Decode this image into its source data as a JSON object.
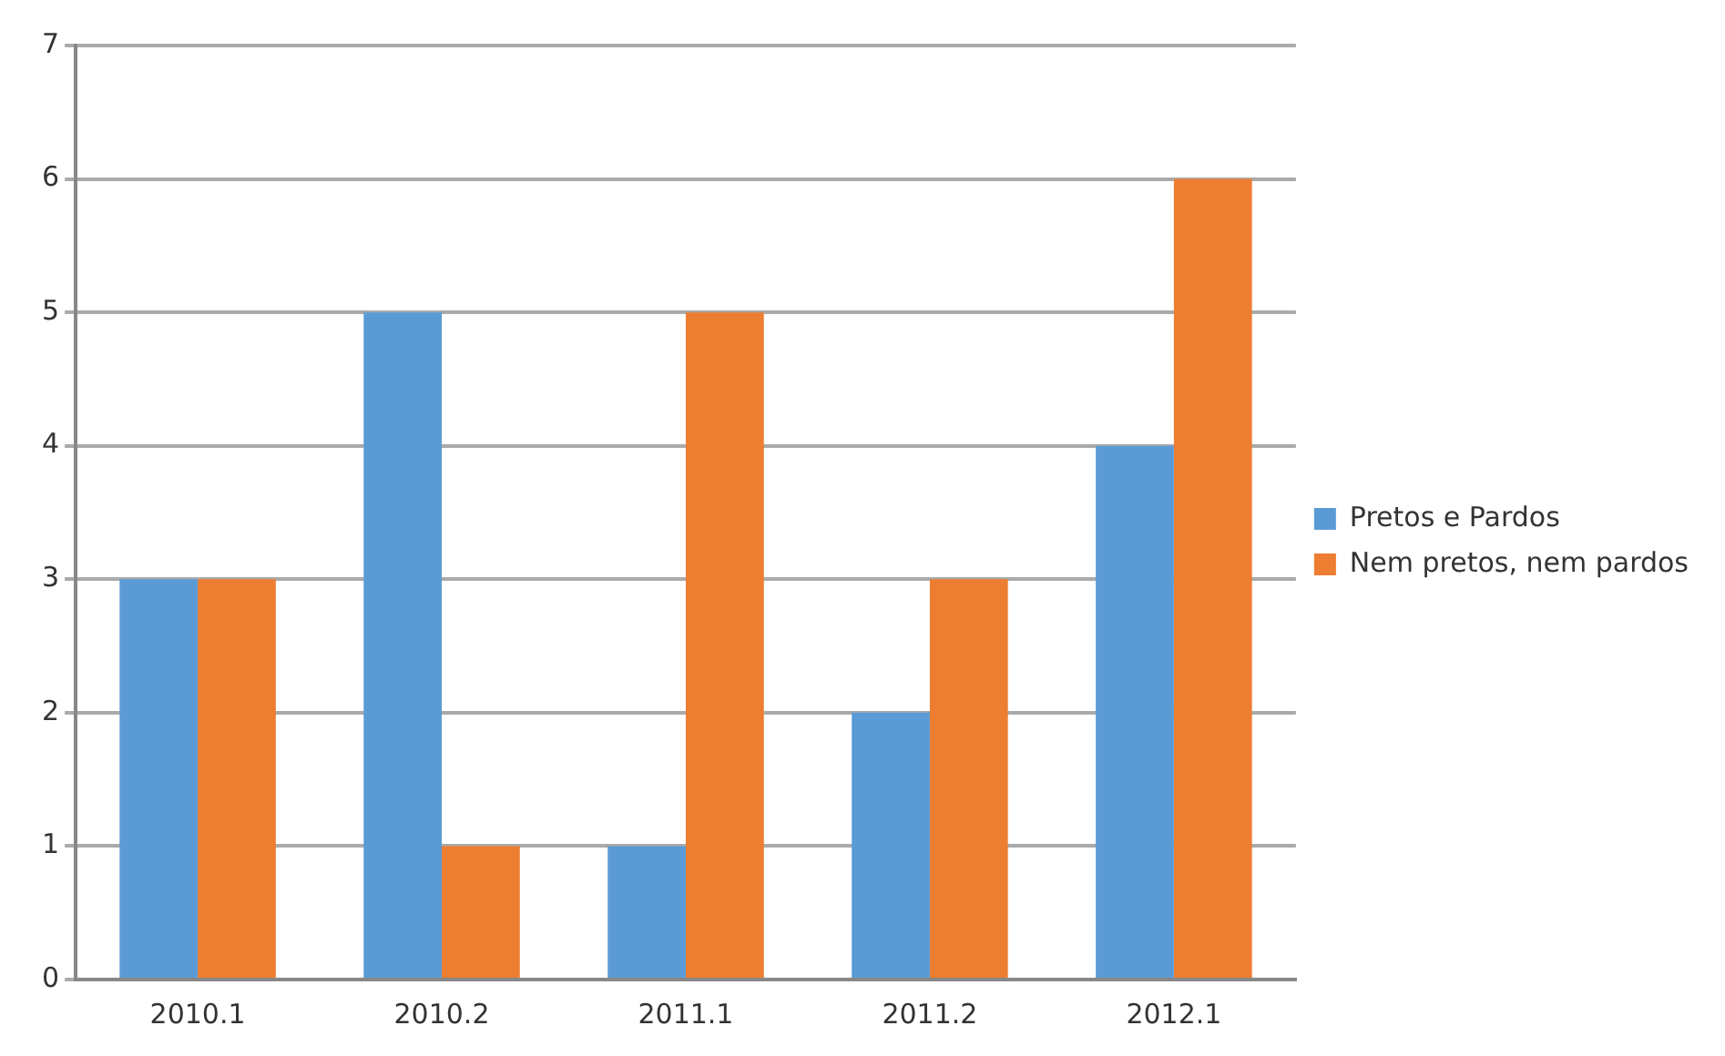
{
  "chart_data": {
    "type": "bar",
    "categories": [
      "2010.1",
      "2010.2",
      "2011.1",
      "2011.2",
      "2012.1"
    ],
    "series": [
      {
        "name": "Pretos e Pardos",
        "color": "#5b9bd5",
        "values": [
          3,
          5,
          1,
          2,
          4
        ]
      },
      {
        "name": "Nem pretos, nem pardos",
        "color": "#ed7d31",
        "values": [
          3,
          1,
          5,
          3,
          6
        ]
      }
    ],
    "ylim": [
      0,
      7
    ],
    "yticks": [
      0,
      1,
      2,
      3,
      4,
      5,
      6,
      7
    ],
    "grid": "y",
    "legend": "right"
  }
}
